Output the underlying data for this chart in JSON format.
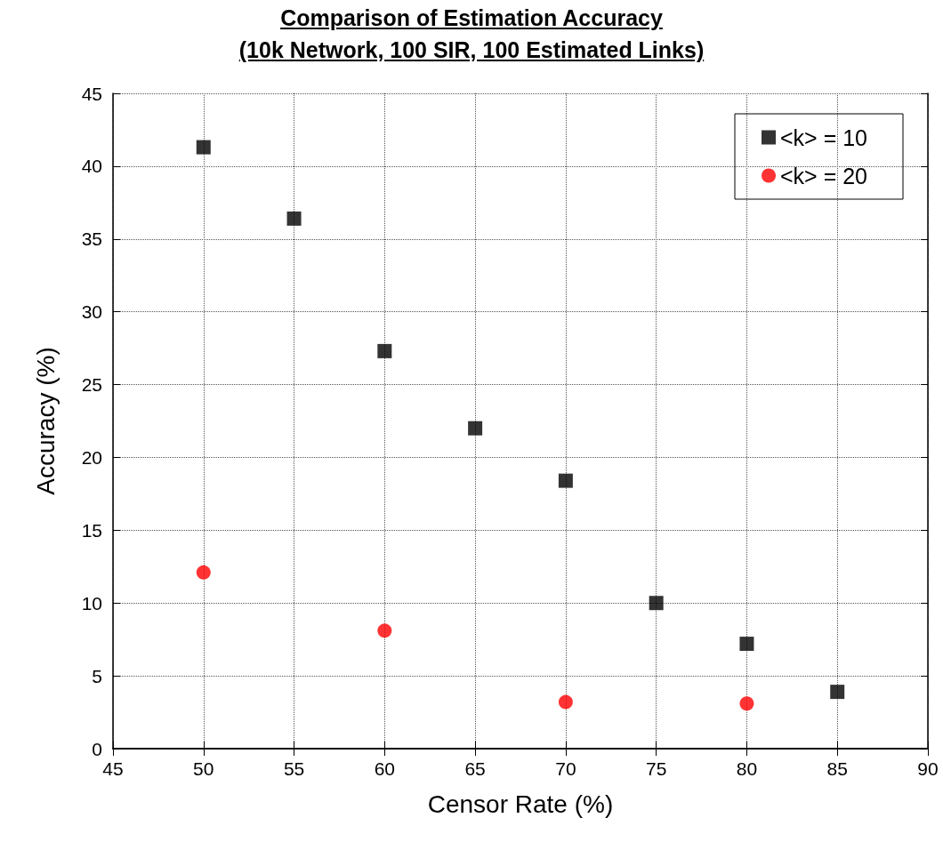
{
  "chart_data": {
    "type": "scatter",
    "title": "Comparison of Estimation Accuracy",
    "subtitle": "(10k Network, 100 SIR, 100 Estimated Links)",
    "xlabel": "Censor Rate (%)",
    "ylabel": "Accuracy (%)",
    "xlim": [
      45,
      90
    ],
    "xticks": [
      45,
      50,
      55,
      60,
      65,
      70,
      75,
      80,
      85,
      90
    ],
    "ylim": [
      0,
      45
    ],
    "yticks": [
      0,
      5,
      10,
      15,
      20,
      25,
      30,
      35,
      40,
      45
    ],
    "grid": true,
    "legend": "top right",
    "series": [
      {
        "name": "<k> = 10",
        "color": "#000000",
        "marker": "square",
        "x": [
          50,
          55,
          60,
          65,
          70,
          75,
          80,
          85
        ],
        "values": [
          41.3,
          36.4,
          27.3,
          22.0,
          18.4,
          10.0,
          7.2,
          3.9
        ]
      },
      {
        "name": "<k> = 20",
        "color": "#ff0000",
        "marker": "circle",
        "x": [
          50,
          60,
          70,
          80
        ],
        "values": [
          12.1,
          8.1,
          3.2,
          3.1
        ]
      }
    ]
  }
}
